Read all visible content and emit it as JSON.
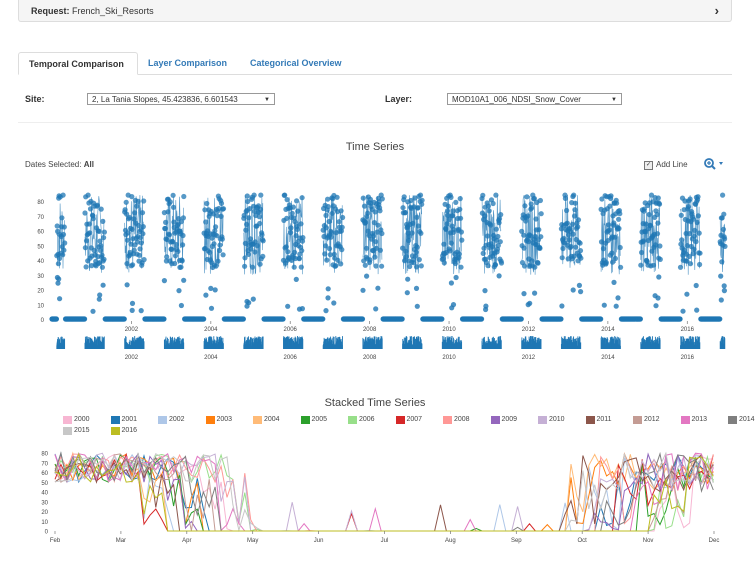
{
  "request": {
    "label": "Request:",
    "value": "French_Ski_Resorts"
  },
  "tabs": [
    {
      "label": "Temporal Comparison"
    },
    {
      "label": "Layer Comparison"
    },
    {
      "label": "Categorical Overview"
    }
  ],
  "site": {
    "label": "Site:",
    "value": "2, La Tania Slopes, 45.423836, 6.601543"
  },
  "layer": {
    "label": "Layer:",
    "value": "MOD10A1_006_NDSI_Snow_Cover"
  },
  "time_series": {
    "title": "Time Series",
    "dates_label": "Dates Selected:",
    "dates_value": "All",
    "add_line_label": "Add Line",
    "y_ticks": [
      "80",
      "70",
      "60",
      "50",
      "40",
      "30",
      "20",
      "10",
      "0"
    ],
    "x_ticks": [
      "2002",
      "2004",
      "2006",
      "2008",
      "2010",
      "2012",
      "2014",
      "2016"
    ]
  },
  "stacked": {
    "title": "Stacked Time Series",
    "y_ticks": [
      "80",
      "70",
      "60",
      "50",
      "40",
      "30",
      "20",
      "10",
      "0"
    ],
    "x_ticks": [
      "Feb",
      "Mar",
      "Apr",
      "May",
      "Jun",
      "Jul",
      "Aug",
      "Sep",
      "Oct",
      "Nov",
      "Dec"
    ]
  },
  "legend": [
    {
      "year": "2000",
      "color": "#f7b6d2"
    },
    {
      "year": "2001",
      "color": "#1f77b4"
    },
    {
      "year": "2002",
      "color": "#aec7e8"
    },
    {
      "year": "2003",
      "color": "#ff7f0e"
    },
    {
      "year": "2004",
      "color": "#ffbb78"
    },
    {
      "year": "2005",
      "color": "#2ca02c"
    },
    {
      "year": "2006",
      "color": "#98df8a"
    },
    {
      "year": "2007",
      "color": "#d62728"
    },
    {
      "year": "2008",
      "color": "#ff9896"
    },
    {
      "year": "2009",
      "color": "#9467bd"
    },
    {
      "year": "2010",
      "color": "#c5b0d5"
    },
    {
      "year": "2011",
      "color": "#8c564b"
    },
    {
      "year": "2012",
      "color": "#c49c94"
    },
    {
      "year": "2013",
      "color": "#e377c2"
    },
    {
      "year": "2014",
      "color": "#7f7f7f"
    },
    {
      "year": "2015",
      "color": "#c7c7c7"
    },
    {
      "year": "2016",
      "color": "#bcbd22"
    }
  ],
  "colors": {
    "series": "#1f77b4",
    "link": "#337ab7"
  }
}
